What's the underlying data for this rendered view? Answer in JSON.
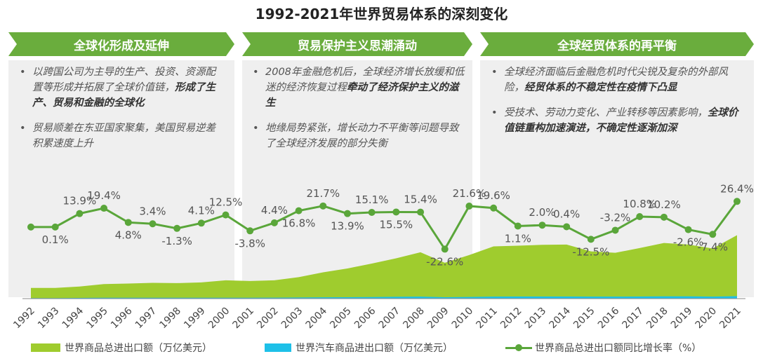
{
  "page_title": "1992-2021年世界贸易体系的深刻变化",
  "phases": [
    {
      "title": "全球化形成及延伸",
      "bullets": [
        {
          "text": "以跨国公司为主导的生产、投资、资源配置等形成并拓展了全球价值链，",
          "bold": "形成了生产、贸易和金融的全球化"
        },
        {
          "text": "贸易顺差在东亚国家聚集，美国贸易逆差积累速度上升",
          "bold": ""
        }
      ]
    },
    {
      "title": "贸易保护主义思潮涌动",
      "bullets": [
        {
          "text": "2008年金融危机后，全球经济增长放缓和低迷的经济恢复过程",
          "bold": "牵动了经济保护主义的滋生"
        },
        {
          "text": "地缘局势紧张，增长动力不平衡等问题导致了全球经济发展的部分失衡",
          "bold": ""
        }
      ]
    },
    {
      "title": "全球经贸体系的再平衡",
      "bullets": [
        {
          "text": "全球经济面临后金融危机时代尖锐及复杂的外部风险，",
          "bold": "经贸体系的不稳定性在疫情下凸显"
        },
        {
          "text": "受技术、劳动力变化、产业转移等因素影响，",
          "bold": "全球价值链重构加速演进，不确定性逐渐加深"
        }
      ]
    }
  ],
  "colors": {
    "green_dark": "#5aa63a",
    "green_light": "#9fcc2e",
    "blue": "#1ec0e8",
    "banner": "#6aad3d",
    "panel": "#efefef"
  },
  "chart_data": {
    "type": "area+line",
    "categories": [
      "1992",
      "1993",
      "1994",
      "1995",
      "1996",
      "1997",
      "1998",
      "1999",
      "2000",
      "2001",
      "2002",
      "2003",
      "2004",
      "2005",
      "2006",
      "2007",
      "2008",
      "2009",
      "2010",
      "2011",
      "2012",
      "2013",
      "2014",
      "2015",
      "2016",
      "2017",
      "2018",
      "2019",
      "2020",
      "2021"
    ],
    "series": [
      {
        "name": "世界商品总进出口额（万亿美元）",
        "type": "area",
        "values": [
          7.5,
          7.5,
          8.5,
          10.2,
          10.6,
          11.1,
          10.9,
          11.4,
          12.9,
          12.4,
          12.9,
          15.1,
          18.5,
          21.2,
          24.6,
          28.3,
          32.6,
          25.2,
          30.6,
          36.7,
          37.2,
          37.8,
          38.0,
          33.2,
          32.2,
          35.5,
          39.1,
          38.0,
          35.2,
          44.6
        ]
      },
      {
        "name": "世界汽车商品进出口额（万亿美元）",
        "type": "area",
        "values": [
          0.4,
          0.4,
          0.5,
          0.6,
          0.6,
          0.6,
          0.6,
          0.6,
          0.6,
          0.6,
          0.7,
          0.8,
          0.9,
          1.0,
          1.1,
          1.3,
          1.4,
          1.0,
          1.2,
          1.4,
          1.5,
          1.5,
          1.5,
          1.4,
          1.4,
          1.5,
          1.6,
          1.6,
          1.4,
          1.7
        ]
      },
      {
        "name": "世界商品总进出口额同比增长率（%）",
        "type": "line",
        "values": [
          0.1,
          0.1,
          13.9,
          19.4,
          4.8,
          3.4,
          -1.3,
          4.1,
          12.5,
          -3.8,
          4.4,
          16.8,
          21.7,
          13.9,
          15.1,
          15.5,
          15.4,
          -22.6,
          21.6,
          19.6,
          1.1,
          2.0,
          0.4,
          -12.5,
          -3.2,
          10.8,
          10.2,
          -2.6,
          -7.4,
          26.4
        ],
        "labels": [
          "",
          "0.1%",
          "13.9%",
          "19.4%",
          "4.8%",
          "3.4%",
          "-1.3%",
          "4.1%",
          "12.5%",
          "-3.8%",
          "4.4%",
          "16.8%",
          "21.7%",
          "13.9%",
          "15.1%",
          "15.5%",
          "15.4%",
          "-22.6%",
          "21.6%",
          "19.6%",
          "1.1%",
          "2.0%",
          "0.4%",
          "-12.5%",
          "-3.2%",
          "10.8%",
          "10.2%",
          "-2.6%",
          "-7.4%",
          "26.4%"
        ],
        "label_pos": [
          "",
          "below",
          "above",
          "above",
          "below",
          "above",
          "below",
          "above",
          "above",
          "below",
          "above",
          "below",
          "above",
          "below",
          "above",
          "below",
          "above",
          "below",
          "above",
          "above",
          "below",
          "above",
          "above",
          "below",
          "above",
          "above",
          "above",
          "below",
          "below",
          "above"
        ]
      }
    ],
    "legend_position": "bottom"
  }
}
